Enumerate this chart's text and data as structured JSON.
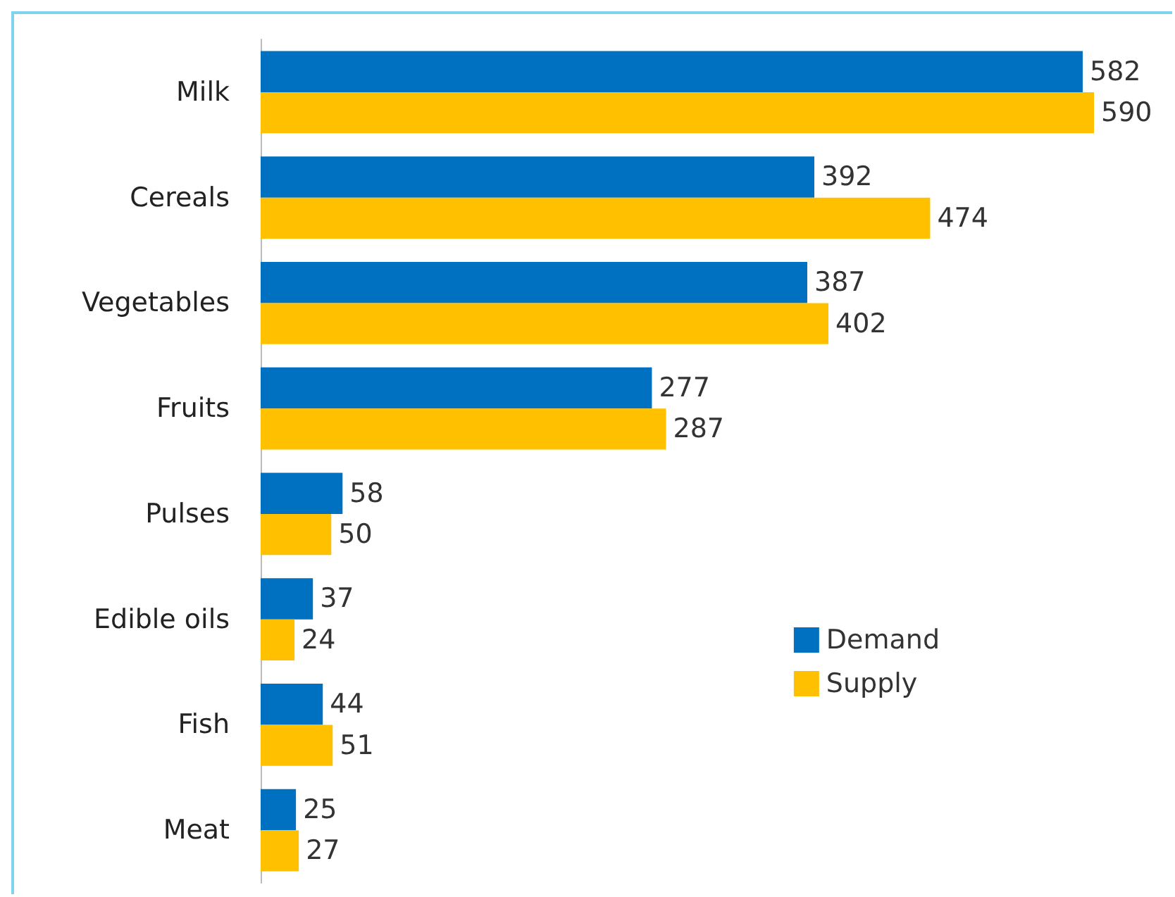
{
  "chart_data": {
    "type": "bar",
    "orientation": "horizontal",
    "categories": [
      "Milk",
      "Cereals",
      "Vegetables",
      "Fruits",
      "Pulses",
      "Edible oils",
      "Fish",
      "Meat"
    ],
    "series": [
      {
        "name": "Demand",
        "color": "#0070c0",
        "values": [
          582,
          392,
          387,
          277,
          58,
          37,
          44,
          25
        ]
      },
      {
        "name": "Supply",
        "color": "#ffc000",
        "values": [
          590,
          474,
          402,
          287,
          50,
          24,
          51,
          27
        ]
      }
    ],
    "data_labels": true,
    "legend": "bottom right"
  }
}
